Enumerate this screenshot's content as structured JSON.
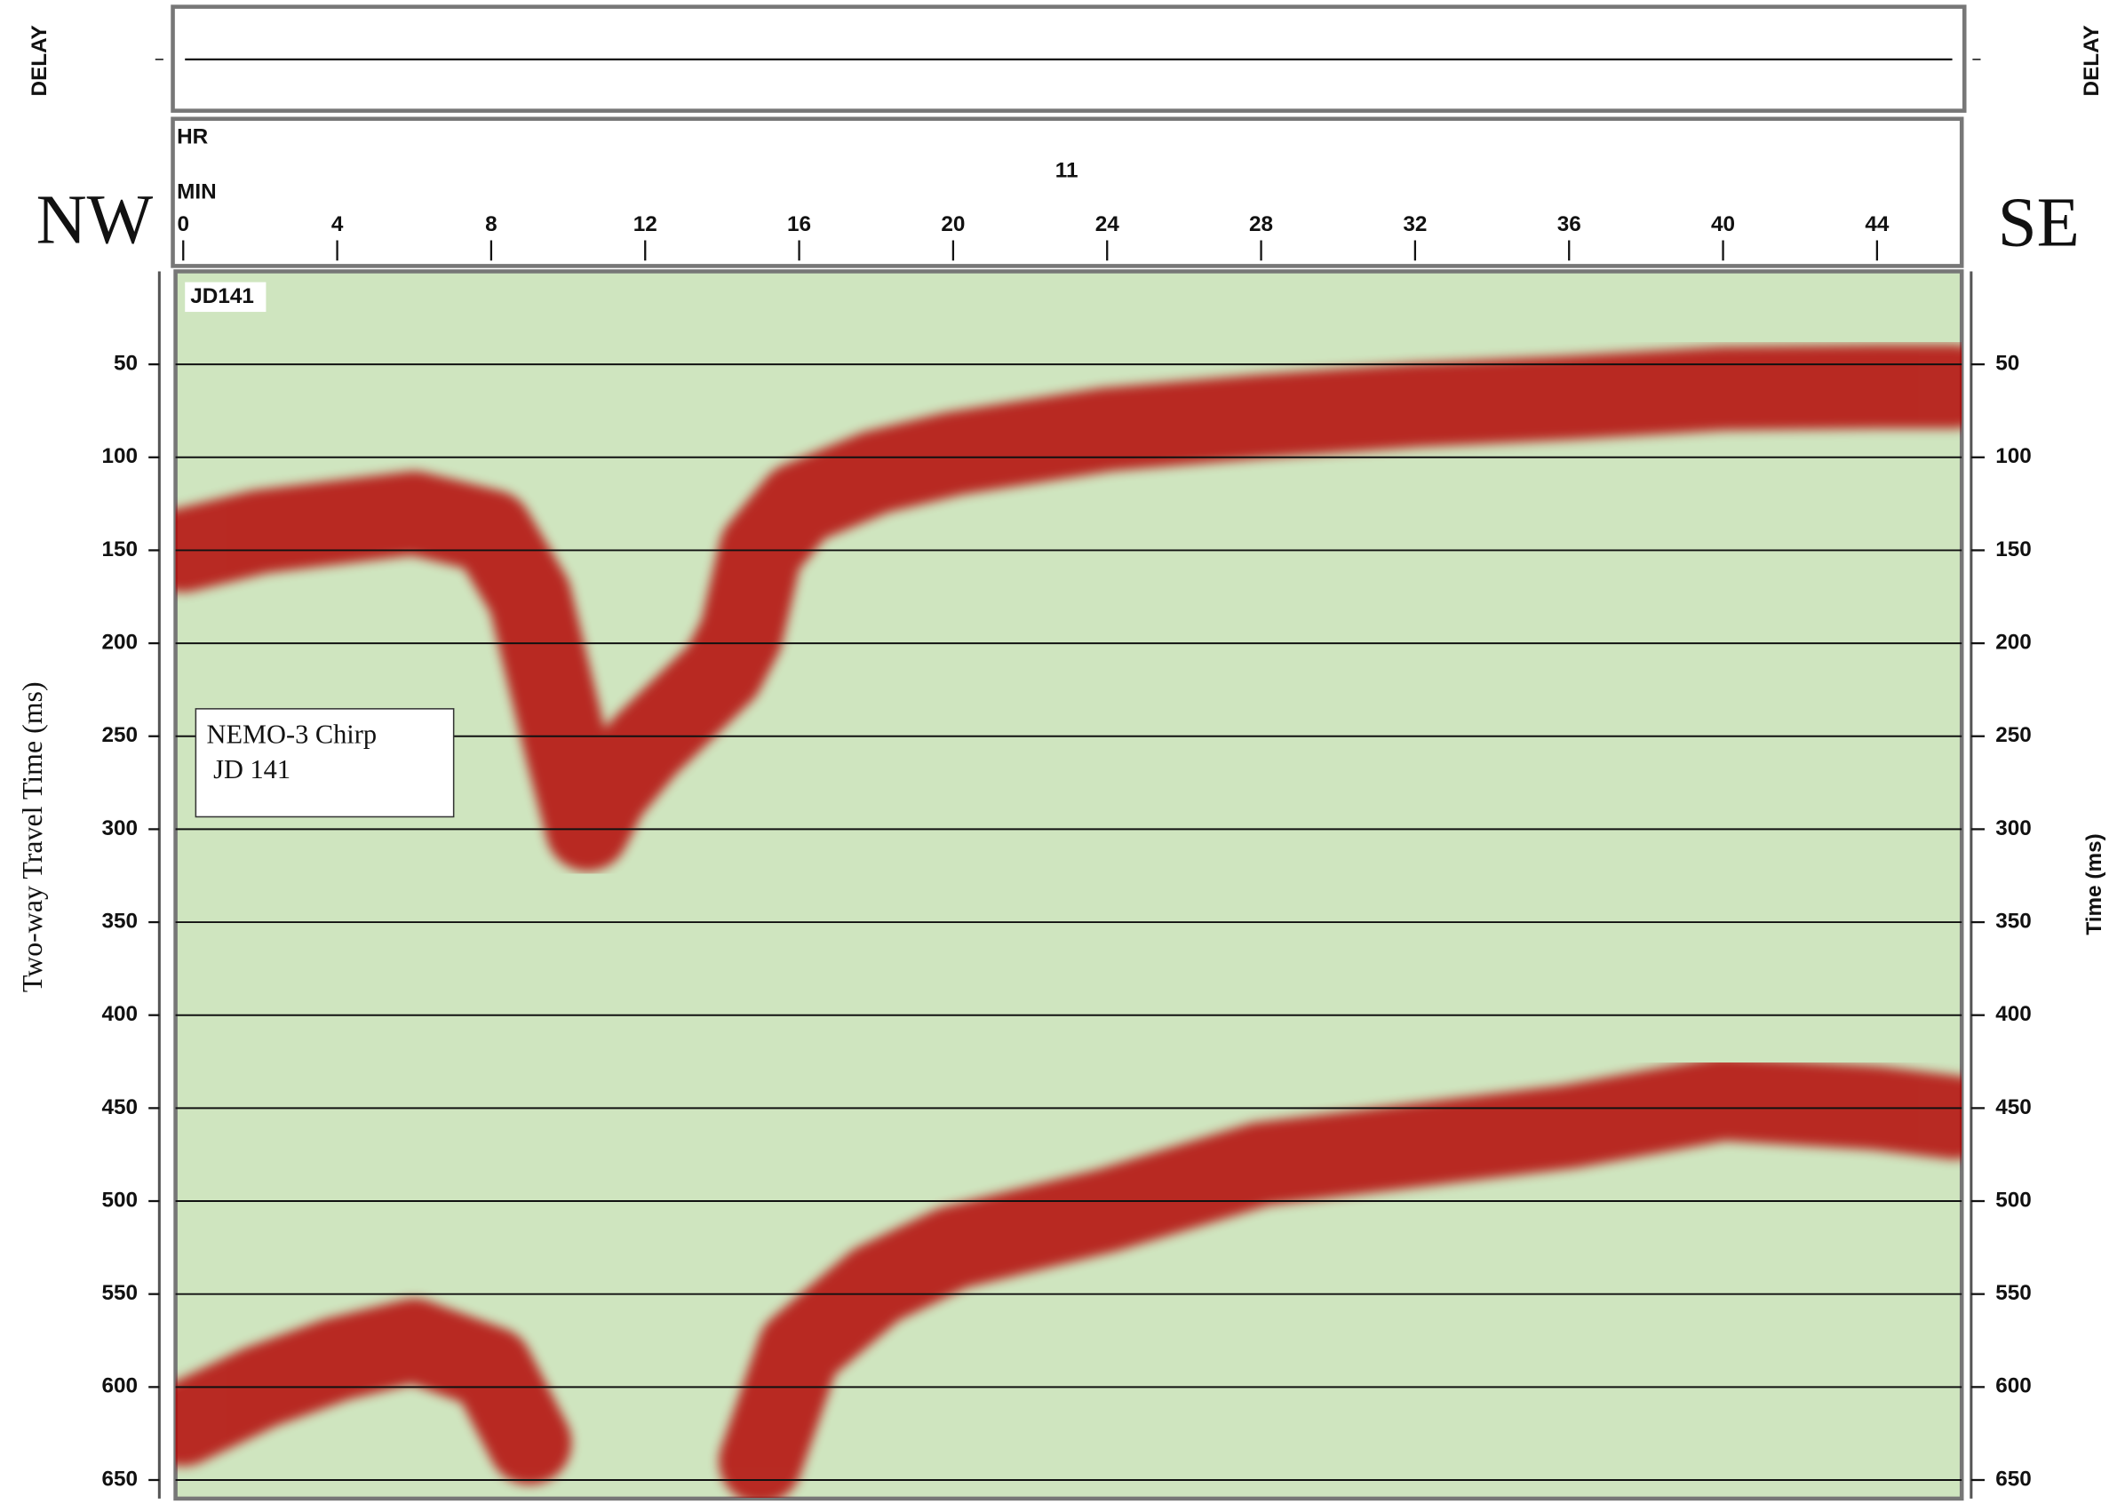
{
  "chart_data": {
    "type": "seismic",
    "delay_label": "DELAY",
    "hour_label": "HR",
    "minute_label": "MIN",
    "hour": 11,
    "left_label": "NW",
    "right_label": "SE",
    "panel_label": "JD141",
    "annotation": [
      "NEMO-3 Chirp",
      "JD 141"
    ],
    "ylabel": "Two-way Travel Time (ms)",
    "y2label": "Time (ms)",
    "xlim": [
      -0.2,
      46.2
    ],
    "xticks": [
      0,
      4,
      8,
      12,
      16,
      20,
      24,
      28,
      32,
      36,
      40,
      44
    ],
    "ylim": [
      0,
      660
    ],
    "yticks": [
      50,
      100,
      150,
      200,
      250,
      300,
      350,
      400,
      450,
      500,
      550,
      600,
      650
    ],
    "y2lim": [
      0,
      660
    ],
    "y2ticks": [
      50,
      100,
      150,
      200,
      250,
      300,
      350,
      400,
      450,
      500,
      550,
      600,
      650
    ],
    "grid": true,
    "background": "#cfe5bf",
    "x": [
      0,
      2,
      4,
      6,
      8,
      9,
      10,
      10.5,
      11,
      12,
      13,
      14,
      14.5,
      15,
      16,
      18,
      20,
      24,
      28,
      32,
      36,
      40,
      44,
      46
    ],
    "series": [
      {
        "color": "#b30000",
        "values": [
          150,
          140,
          135,
          130,
          140,
          175,
          260,
          300,
          280,
          255,
          235,
          215,
          195,
          150,
          125,
          108,
          98,
          85,
          78,
          72,
          68,
          63,
          62,
          62
        ]
      },
      {
        "color": "#b30000",
        "values": [
          620,
          600,
          585,
          575,
          590,
          630,
          null,
          null,
          null,
          null,
          null,
          null,
          null,
          640,
          580,
          545,
          525,
          505,
          480,
          470,
          460,
          445,
          450,
          455
        ]
      }
    ]
  }
}
